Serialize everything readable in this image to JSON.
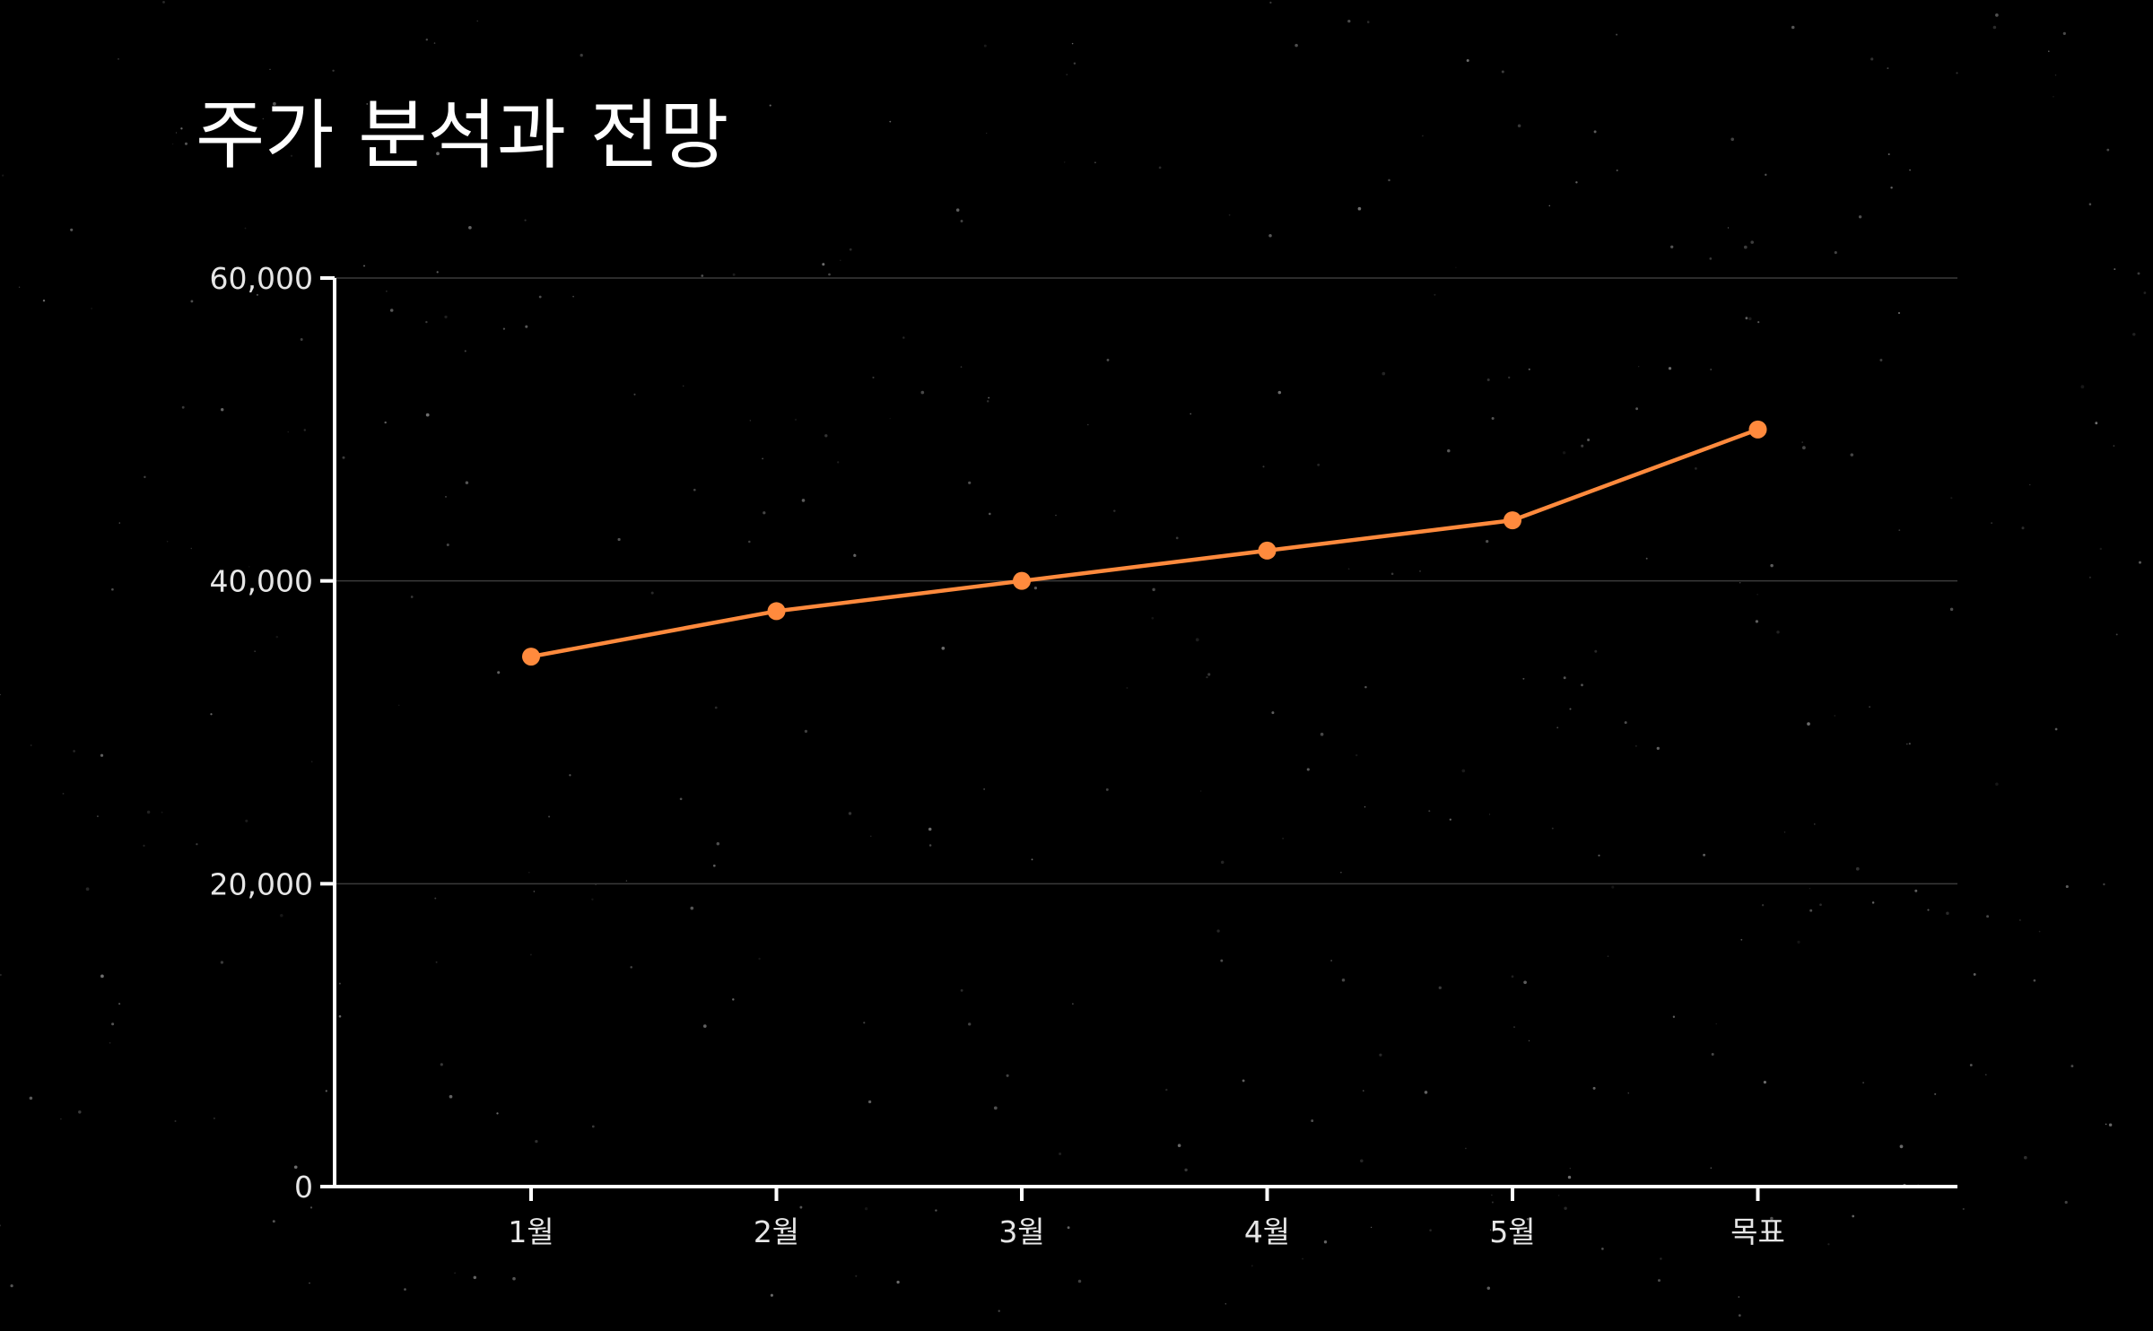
{
  "chart_data": {
    "type": "line",
    "title": "주가 분석과 전망",
    "categories": [
      "1월",
      "2월",
      "3월",
      "4월",
      "5월",
      "목표"
    ],
    "series": [
      {
        "values": [
          35000,
          38000,
          40000,
          42000,
          44000,
          50000
        ]
      }
    ],
    "xlabel": "",
    "ylabel": "",
    "ylim": [
      0,
      60000
    ],
    "yticks": [
      0,
      20000,
      40000,
      60000
    ],
    "ytick_labels": [
      "0",
      "20,000",
      "40,000",
      "60,000"
    ],
    "grid": true,
    "legend": "none",
    "colors": {
      "background": "#000000",
      "series": "#ff8a3d",
      "axis": "#ffffff",
      "grid": "#3a3a3a",
      "text": "#ffffff"
    }
  }
}
